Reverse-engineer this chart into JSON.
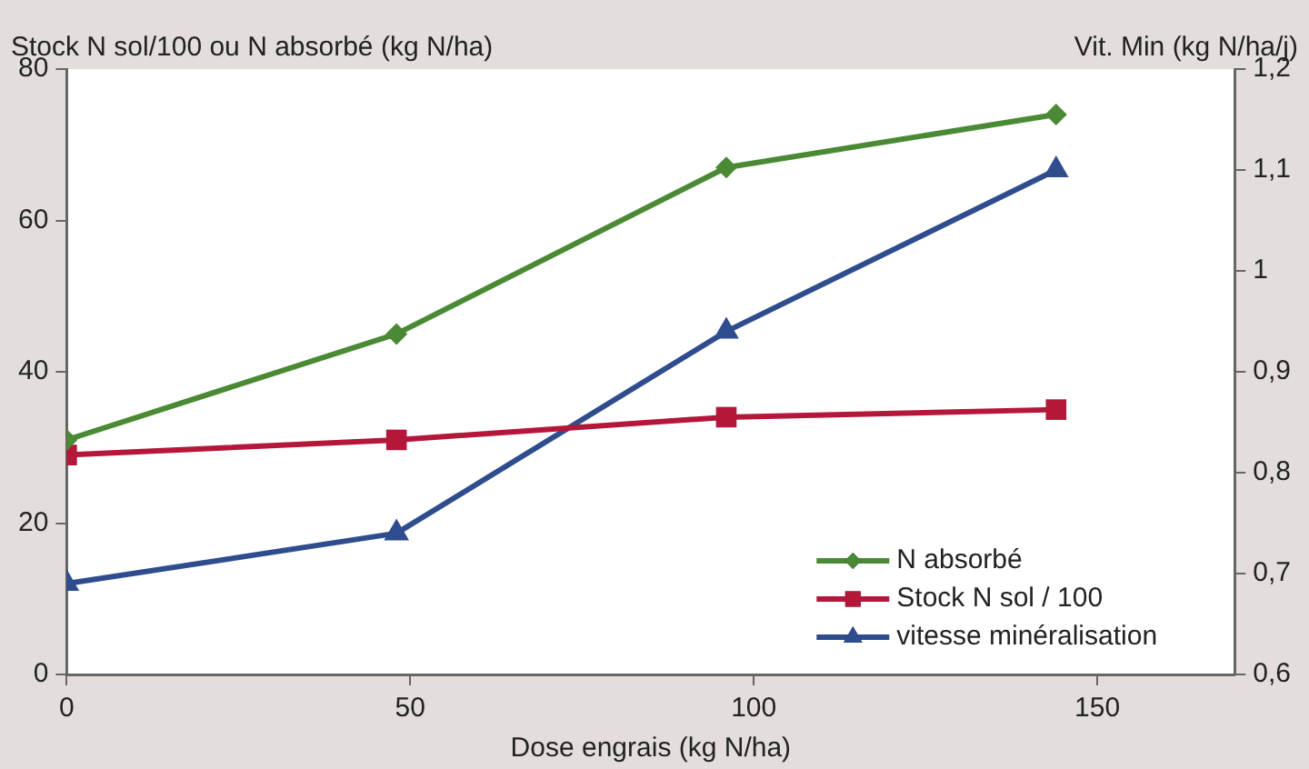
{
  "chart_data": {
    "type": "line",
    "xlabel": "Dose engrais (kg N/ha)",
    "ylabel": "Stock N sol/100 ou N absorbé (kg N/ha)",
    "y2label": "Vit. Min (kg N/ha/j)",
    "x": [
      0,
      48,
      96,
      144
    ],
    "xlim": [
      0,
      170
    ],
    "xticks": [
      0,
      50,
      100,
      150
    ],
    "ylim": [
      0,
      80
    ],
    "yticks": [
      0,
      20,
      40,
      60,
      80
    ],
    "y2lim": [
      0.6,
      1.2
    ],
    "y2ticks": [
      {
        "value": 0.6,
        "label": "0,6"
      },
      {
        "value": 0.7,
        "label": "0,7"
      },
      {
        "value": 0.8,
        "label": "0,8"
      },
      {
        "value": 0.9,
        "label": "0,9"
      },
      1,
      {
        "value": 1.1,
        "label": "1,1"
      },
      {
        "value": 1.2,
        "label": "1,2"
      }
    ],
    "series": [
      {
        "name": "N absorbé",
        "color": "#4a8a34",
        "marker": "diamond",
        "values": [
          31,
          45,
          67,
          74
        ]
      },
      {
        "name": "Stock N sol / 100",
        "color": "#b5173a",
        "marker": "square",
        "values": [
          29,
          31,
          34,
          35
        ]
      },
      {
        "name": "vitesse minéralisation",
        "color": "#2f4d8e",
        "marker": "triangle",
        "axis": "y2",
        "values": [
          0.69,
          0.74,
          0.94,
          1.1
        ]
      }
    ],
    "grid": false,
    "legend": "bottom right"
  }
}
